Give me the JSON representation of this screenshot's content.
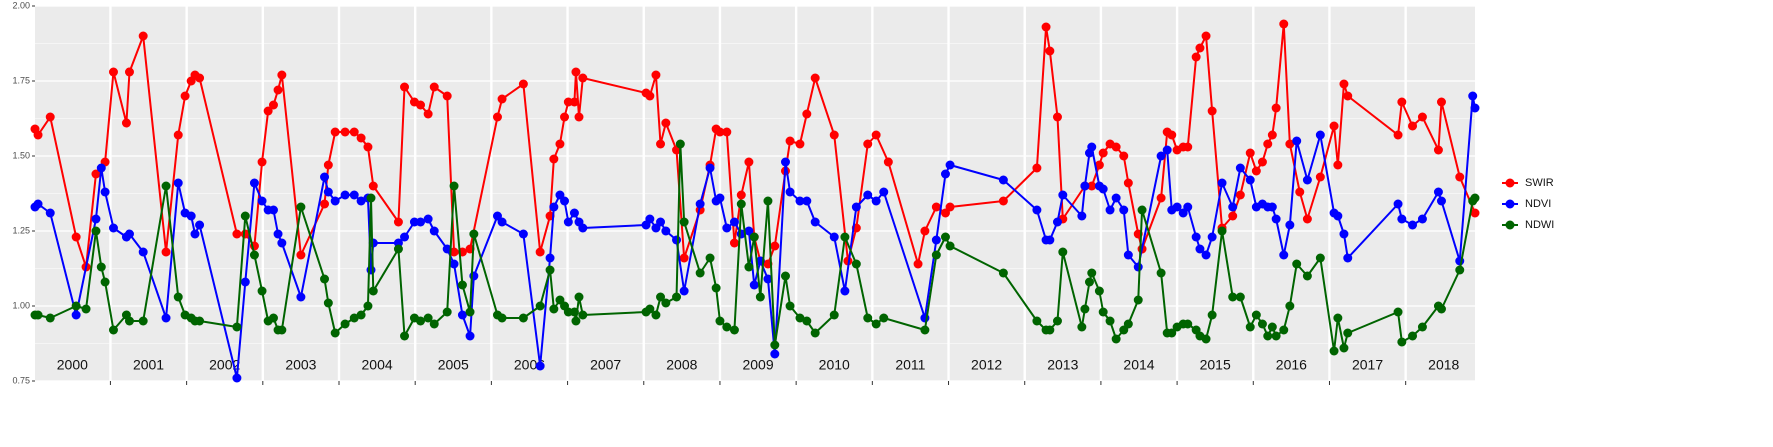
{
  "chart_data": {
    "type": "line",
    "xlim": [
      2000.01,
      2018.91
    ],
    "ylim": [
      0.75,
      2.0
    ],
    "yticks": [
      {
        "value": 0.75,
        "label": "0.75"
      },
      {
        "value": 1.0,
        "label": "1.00"
      },
      {
        "value": 1.25,
        "label": "1.25"
      },
      {
        "value": 1.5,
        "label": "1.50"
      },
      {
        "value": 1.75,
        "label": "1.75"
      },
      {
        "value": 2.0,
        "label": "2.00"
      }
    ],
    "xticks": [
      2001,
      2002,
      2003,
      2004,
      2005,
      2006,
      2007,
      2008,
      2009,
      2010,
      2011,
      2012,
      2013,
      2014,
      2015,
      2016,
      2017,
      2018
    ],
    "year_labels": [
      2000,
      2001,
      2002,
      2003,
      2004,
      2005,
      2006,
      2007,
      2008,
      2009,
      2010,
      2011,
      2012,
      2013,
      2014,
      2015,
      2016,
      2017,
      2018
    ],
    "grid": true,
    "legend": "right",
    "series": [
      {
        "name": "SWIR",
        "color": "#ff0000",
        "x": [
          2000.01,
          2000.05,
          2000.21,
          2000.55,
          2000.68,
          2000.81,
          2000.93,
          2001.04,
          2001.21,
          2001.25,
          2001.43,
          2001.73,
          2001.89,
          2001.98,
          2002.06,
          2002.11,
          2002.17,
          2002.66,
          2002.77,
          2002.89,
          2002.99,
          2003.07,
          2003.14,
          2003.2,
          2003.25,
          2003.5,
          2003.81,
          2003.86,
          2003.95,
          2004.08,
          2004.2,
          2004.29,
          2004.38,
          2004.45,
          2004.78,
          2004.86,
          2004.99,
          2005.07,
          2005.17,
          2005.25,
          2005.42,
          2005.51,
          2005.62,
          2005.72,
          2006.08,
          2006.14,
          2006.42,
          2006.64,
          2006.77,
          2006.82,
          2006.9,
          2006.96,
          2007.01,
          2007.09,
          2007.11,
          2007.15,
          2007.2,
          2008.03,
          2008.08,
          2008.16,
          2008.22,
          2008.29,
          2008.43,
          2008.53,
          2008.74,
          2008.87,
          2008.95,
          2009.0,
          2009.09,
          2009.19,
          2009.28,
          2009.38,
          2009.45,
          2009.53,
          2009.63,
          2009.72,
          2009.86,
          2009.92,
          2010.05,
          2010.14,
          2010.25,
          2010.5,
          2010.68,
          2010.79,
          2010.94,
          2011.05,
          2011.21,
          2011.6,
          2011.69,
          2011.84,
          2011.96,
          2012.02,
          2012.72,
          2013.16,
          2013.28,
          2013.33,
          2013.43,
          2013.5,
          2013.79,
          2013.88,
          2013.98,
          2014.03,
          2014.12,
          2014.2,
          2014.3,
          2014.36,
          2014.49,
          2014.54,
          2014.79,
          2014.87,
          2014.93,
          2015.0,
          2015.08,
          2015.14,
          2015.25,
          2015.3,
          2015.38,
          2015.46,
          2015.59,
          2015.73,
          2015.83,
          2015.96,
          2016.04,
          2016.12,
          2016.19,
          2016.25,
          2016.3,
          2016.4,
          2016.48,
          2016.61,
          2016.71,
          2016.88,
          2017.06,
          2017.11,
          2017.19,
          2017.24,
          2017.9,
          2017.95,
          2018.09,
          2018.22,
          2018.43,
          2018.47,
          2018.71,
          2018.91
        ],
        "values": [
          1.59,
          1.57,
          1.63,
          1.23,
          1.13,
          1.44,
          1.48,
          1.78,
          1.61,
          1.78,
          1.9,
          1.18,
          1.57,
          1.7,
          1.75,
          1.77,
          1.76,
          1.24,
          1.24,
          1.2,
          1.48,
          1.65,
          1.67,
          1.72,
          1.77,
          1.17,
          1.34,
          1.47,
          1.58,
          1.58,
          1.58,
          1.56,
          1.53,
          1.4,
          1.28,
          1.73,
          1.68,
          1.67,
          1.64,
          1.73,
          1.7,
          1.18,
          1.18,
          1.19,
          1.63,
          1.69,
          1.74,
          1.18,
          1.3,
          1.49,
          1.54,
          1.63,
          1.68,
          1.68,
          1.78,
          1.63,
          1.76,
          1.71,
          1.7,
          1.77,
          1.54,
          1.61,
          1.52,
          1.16,
          1.32,
          1.47,
          1.59,
          1.58,
          1.58,
          1.21,
          1.37,
          1.48,
          1.23,
          1.15,
          1.14,
          1.2,
          1.45,
          1.55,
          1.54,
          1.64,
          1.76,
          1.57,
          1.15,
          1.26,
          1.54,
          1.57,
          1.48,
          1.14,
          1.25,
          1.33,
          1.31,
          1.33,
          1.35,
          1.46,
          1.93,
          1.85,
          1.63,
          1.29,
          1.4,
          1.4,
          1.47,
          1.51,
          1.54,
          1.53,
          1.5,
          1.41,
          1.24,
          1.19,
          1.36,
          1.58,
          1.57,
          1.52,
          1.53,
          1.53,
          1.83,
          1.86,
          1.9,
          1.65,
          1.26,
          1.3,
          1.37,
          1.51,
          1.45,
          1.48,
          1.54,
          1.57,
          1.66,
          1.94,
          1.54,
          1.38,
          1.29,
          1.43,
          1.6,
          1.47,
          1.74,
          1.7,
          1.57,
          1.68,
          1.6,
          1.63,
          1.52,
          1.68,
          1.43,
          1.31
        ]
      },
      {
        "name": "NDVI",
        "color": "#0000ff",
        "x": [
          2000.01,
          2000.05,
          2000.21,
          2000.55,
          2000.81,
          2000.88,
          2000.93,
          2001.04,
          2001.21,
          2001.25,
          2001.43,
          2001.73,
          2001.89,
          2001.98,
          2002.06,
          2002.11,
          2002.17,
          2002.66,
          2002.77,
          2002.89,
          2002.99,
          2003.07,
          2003.14,
          2003.2,
          2003.25,
          2003.5,
          2003.81,
          2003.86,
          2003.95,
          2004.08,
          2004.2,
          2004.29,
          2004.38,
          2004.42,
          2004.45,
          2004.78,
          2004.86,
          2004.99,
          2005.07,
          2005.17,
          2005.25,
          2005.42,
          2005.51,
          2005.62,
          2005.72,
          2005.77,
          2006.08,
          2006.14,
          2006.42,
          2006.64,
          2006.77,
          2006.82,
          2006.9,
          2006.96,
          2007.01,
          2007.09,
          2007.15,
          2007.2,
          2008.03,
          2008.08,
          2008.16,
          2008.22,
          2008.29,
          2008.43,
          2008.53,
          2008.74,
          2008.87,
          2008.95,
          2009.0,
          2009.09,
          2009.19,
          2009.28,
          2009.38,
          2009.45,
          2009.53,
          2009.63,
          2009.72,
          2009.86,
          2009.92,
          2010.05,
          2010.14,
          2010.25,
          2010.5,
          2010.64,
          2010.79,
          2010.94,
          2011.05,
          2011.15,
          2011.69,
          2011.84,
          2011.96,
          2012.02,
          2012.72,
          2013.16,
          2013.28,
          2013.33,
          2013.43,
          2013.5,
          2013.75,
          2013.79,
          2013.85,
          2013.88,
          2013.98,
          2014.03,
          2014.12,
          2014.2,
          2014.3,
          2014.36,
          2014.49,
          2014.79,
          2014.87,
          2014.93,
          2015.0,
          2015.08,
          2015.14,
          2015.25,
          2015.3,
          2015.38,
          2015.46,
          2015.59,
          2015.73,
          2015.83,
          2015.96,
          2016.04,
          2016.12,
          2016.19,
          2016.25,
          2016.3,
          2016.4,
          2016.48,
          2016.57,
          2016.71,
          2016.88,
          2017.06,
          2017.11,
          2017.19,
          2017.24,
          2017.9,
          2017.95,
          2018.09,
          2018.22,
          2018.43,
          2018.47,
          2018.71,
          2018.88,
          2018.91
        ],
        "values": [
          1.33,
          1.34,
          1.31,
          0.97,
          1.29,
          1.46,
          1.38,
          1.26,
          1.23,
          1.24,
          1.18,
          0.96,
          1.41,
          1.31,
          1.3,
          1.24,
          1.27,
          0.76,
          1.08,
          1.41,
          1.35,
          1.32,
          1.32,
          1.24,
          1.21,
          1.03,
          1.43,
          1.38,
          1.35,
          1.37,
          1.37,
          1.35,
          1.36,
          1.12,
          1.21,
          1.21,
          1.23,
          1.28,
          1.28,
          1.29,
          1.25,
          1.19,
          1.14,
          0.97,
          0.9,
          1.1,
          1.3,
          1.28,
          1.24,
          0.8,
          1.16,
          1.33,
          1.37,
          1.35,
          1.28,
          1.31,
          1.28,
          1.26,
          1.27,
          1.29,
          1.26,
          1.28,
          1.25,
          1.22,
          1.05,
          1.34,
          1.46,
          1.35,
          1.36,
          1.26,
          1.28,
          1.24,
          1.25,
          1.07,
          1.15,
          1.09,
          0.84,
          1.48,
          1.38,
          1.35,
          1.35,
          1.28,
          1.23,
          1.05,
          1.33,
          1.37,
          1.35,
          1.38,
          0.96,
          1.22,
          1.44,
          1.47,
          1.42,
          1.32,
          1.22,
          1.22,
          1.28,
          1.37,
          1.3,
          1.4,
          1.51,
          1.53,
          1.4,
          1.39,
          1.32,
          1.36,
          1.32,
          1.17,
          1.13,
          1.5,
          1.52,
          1.32,
          1.33,
          1.31,
          1.33,
          1.23,
          1.19,
          1.17,
          1.23,
          1.41,
          1.33,
          1.46,
          1.42,
          1.33,
          1.34,
          1.33,
          1.33,
          1.29,
          1.17,
          1.27,
          1.55,
          1.42,
          1.57,
          1.31,
          1.3,
          1.24,
          1.16,
          1.34,
          1.29,
          1.27,
          1.29,
          1.38,
          1.35,
          1.15,
          1.7,
          1.66
        ]
      },
      {
        "name": "NDWI",
        "color": "#006400",
        "x": [
          2000.01,
          2000.05,
          2000.21,
          2000.55,
          2000.68,
          2000.81,
          2000.88,
          2000.93,
          2001.04,
          2001.21,
          2001.25,
          2001.43,
          2001.73,
          2001.89,
          2001.98,
          2002.06,
          2002.11,
          2002.17,
          2002.66,
          2002.77,
          2002.89,
          2002.99,
          2003.07,
          2003.14,
          2003.2,
          2003.25,
          2003.5,
          2003.81,
          2003.86,
          2003.95,
          2004.08,
          2004.2,
          2004.29,
          2004.38,
          2004.42,
          2004.45,
          2004.78,
          2004.86,
          2004.99,
          2005.07,
          2005.17,
          2005.25,
          2005.42,
          2005.51,
          2005.62,
          2005.72,
          2005.77,
          2006.08,
          2006.14,
          2006.42,
          2006.64,
          2006.77,
          2006.82,
          2006.9,
          2006.96,
          2007.01,
          2007.09,
          2007.11,
          2007.15,
          2007.2,
          2008.03,
          2008.08,
          2008.16,
          2008.22,
          2008.29,
          2008.43,
          2008.48,
          2008.53,
          2008.74,
          2008.87,
          2008.95,
          2009.0,
          2009.09,
          2009.19,
          2009.28,
          2009.38,
          2009.45,
          2009.53,
          2009.63,
          2009.72,
          2009.86,
          2009.92,
          2010.05,
          2010.14,
          2010.25,
          2010.5,
          2010.64,
          2010.79,
          2010.94,
          2011.05,
          2011.15,
          2011.69,
          2011.84,
          2011.96,
          2012.02,
          2012.72,
          2013.16,
          2013.28,
          2013.33,
          2013.43,
          2013.5,
          2013.75,
          2013.79,
          2013.85,
          2013.88,
          2013.98,
          2014.03,
          2014.12,
          2014.2,
          2014.3,
          2014.36,
          2014.49,
          2014.54,
          2014.79,
          2014.87,
          2014.93,
          2015.0,
          2015.08,
          2015.14,
          2015.25,
          2015.3,
          2015.38,
          2015.46,
          2015.59,
          2015.73,
          2015.83,
          2015.96,
          2016.04,
          2016.12,
          2016.19,
          2016.25,
          2016.3,
          2016.4,
          2016.48,
          2016.57,
          2016.71,
          2016.88,
          2017.06,
          2017.11,
          2017.19,
          2017.24,
          2017.9,
          2017.95,
          2018.09,
          2018.22,
          2018.43,
          2018.47,
          2018.71,
          2018.88,
          2018.91
        ],
        "values": [
          0.97,
          0.97,
          0.96,
          1.0,
          0.99,
          1.25,
          1.13,
          1.08,
          0.92,
          0.97,
          0.95,
          0.95,
          1.4,
          1.03,
          0.97,
          0.96,
          0.95,
          0.95,
          0.93,
          1.3,
          1.17,
          1.05,
          0.95,
          0.96,
          0.92,
          0.92,
          1.33,
          1.09,
          1.01,
          0.91,
          0.94,
          0.96,
          0.97,
          1.0,
          1.36,
          1.05,
          1.19,
          0.9,
          0.96,
          0.95,
          0.96,
          0.94,
          0.98,
          1.4,
          1.07,
          0.98,
          1.24,
          0.97,
          0.96,
          0.96,
          1.0,
          1.12,
          0.99,
          1.02,
          1.0,
          0.98,
          0.98,
          0.95,
          1.03,
          0.97,
          0.98,
          0.99,
          0.97,
          1.03,
          1.01,
          1.03,
          1.54,
          1.28,
          1.11,
          1.16,
          1.06,
          0.95,
          0.93,
          0.92,
          1.34,
          1.13,
          1.23,
          1.03,
          1.35,
          0.87,
          1.1,
          1.0,
          0.96,
          0.95,
          0.91,
          0.97,
          1.23,
          1.14,
          0.96,
          0.94,
          0.96,
          0.92,
          1.17,
          1.23,
          1.2,
          1.11,
          0.95,
          0.92,
          0.92,
          0.95,
          1.18,
          0.93,
          0.99,
          1.08,
          1.11,
          1.05,
          0.98,
          0.95,
          0.89,
          0.92,
          0.94,
          1.02,
          1.32,
          1.11,
          0.91,
          0.91,
          0.93,
          0.94,
          0.94,
          0.92,
          0.9,
          0.89,
          0.97,
          1.25,
          1.03,
          1.03,
          0.93,
          0.97,
          0.94,
          0.9,
          0.93,
          0.9,
          0.92,
          1.0,
          1.14,
          1.1,
          1.16,
          0.85,
          0.96,
          0.86,
          0.91,
          0.98,
          0.88,
          0.9,
          0.93,
          1.0,
          0.99,
          1.12,
          1.35,
          1.36
        ]
      }
    ]
  }
}
